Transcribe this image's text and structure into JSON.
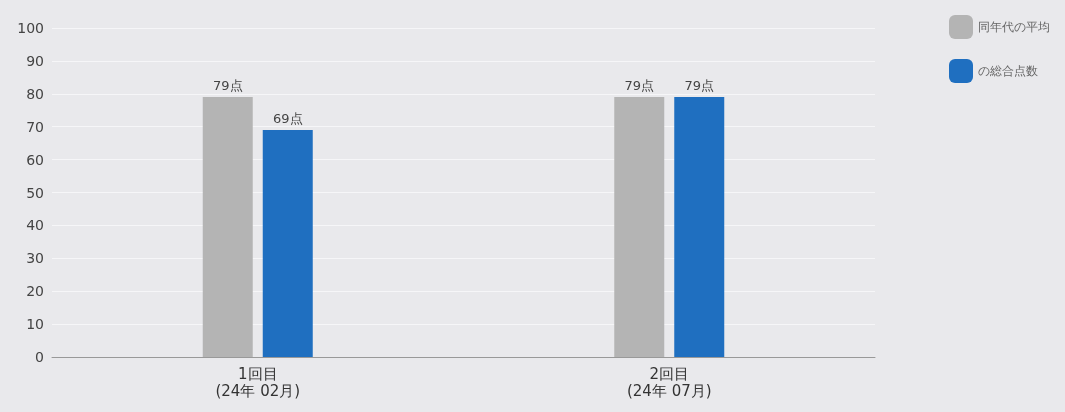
{
  "chart_data": {
    "type": "bar",
    "categories": [
      "1回目\n(24年 02月)",
      "2回目\n(24年 07月)"
    ],
    "series": [
      {
        "name": "同年代の平均",
        "color": "#b4b4b4",
        "values": [
          79,
          79
        ],
        "value_labels": [
          "79点",
          "79点"
        ]
      },
      {
        "name": "の総合点数",
        "color": "#1f6fc0",
        "values": [
          69,
          79
        ],
        "value_labels": [
          "69点",
          "79点"
        ]
      }
    ],
    "ylim": [
      0,
      100
    ],
    "yticks": [
      0,
      10,
      20,
      30,
      40,
      50,
      60,
      70,
      80,
      90,
      100
    ],
    "grid": "y",
    "legend": "top right"
  }
}
